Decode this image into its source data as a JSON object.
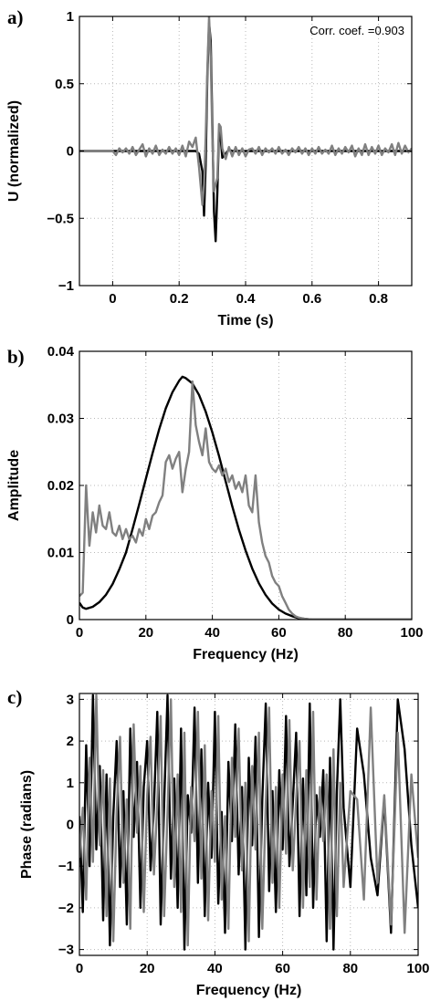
{
  "colors": {
    "black_trace": "#000000",
    "gray_trace": "#808080",
    "grid": "#b8b8b8"
  },
  "chart_data": [
    {
      "type": "line",
      "panel_label": "a)",
      "xlabel": "Time (s)",
      "ylabel": "U (normalized)",
      "annotation": "Corr. coef. =0.903",
      "xlim": [
        -0.1,
        0.9
      ],
      "ylim": [
        -1,
        1
      ],
      "xticks": [
        0,
        0.2,
        0.4,
        0.6,
        0.8
      ],
      "xtick_labels": [
        "0",
        "0.2",
        "0.4",
        "0.6",
        "0.8"
      ],
      "yticks": [
        -1,
        -0.5,
        0,
        0.5,
        1
      ],
      "ytick_labels": [
        "−1",
        "−0.5",
        "0",
        "0.5",
        "1"
      ],
      "grid": true,
      "series": [
        {
          "color": "black",
          "x": [
            -0.1,
            0.25,
            0.26,
            0.27,
            0.275,
            0.28,
            0.285,
            0.29,
            0.295,
            0.3,
            0.305,
            0.31,
            0.315,
            0.32,
            0.325,
            0.33,
            0.34,
            0.35,
            0.36,
            0.9
          ],
          "y": [
            0,
            0,
            -0.02,
            -0.15,
            -0.48,
            -0.1,
            0.55,
            0.95,
            0.82,
            0.2,
            -0.45,
            -0.67,
            -0.3,
            0.15,
            0.1,
            -0.05,
            -0.02,
            0.01,
            0,
            0
          ]
        },
        {
          "color": "gray",
          "x": [
            -0.1,
            0.0,
            0.01,
            0.02,
            0.03,
            0.04,
            0.05,
            0.06,
            0.07,
            0.08,
            0.09,
            0.1,
            0.11,
            0.12,
            0.13,
            0.14,
            0.15,
            0.16,
            0.17,
            0.18,
            0.19,
            0.2,
            0.21,
            0.22,
            0.23,
            0.24,
            0.25,
            0.26,
            0.27,
            0.275,
            0.28,
            0.285,
            0.29,
            0.295,
            0.3,
            0.305,
            0.31,
            0.315,
            0.32,
            0.325,
            0.33,
            0.34,
            0.35,
            0.36,
            0.37,
            0.38,
            0.39,
            0.4,
            0.41,
            0.42,
            0.43,
            0.44,
            0.45,
            0.46,
            0.47,
            0.48,
            0.49,
            0.5,
            0.51,
            0.52,
            0.53,
            0.54,
            0.55,
            0.56,
            0.57,
            0.58,
            0.59,
            0.6,
            0.61,
            0.62,
            0.63,
            0.64,
            0.65,
            0.66,
            0.67,
            0.68,
            0.69,
            0.7,
            0.71,
            0.72,
            0.73,
            0.74,
            0.75,
            0.76,
            0.77,
            0.78,
            0.79,
            0.8,
            0.81,
            0.82,
            0.83,
            0.84,
            0.85,
            0.86,
            0.87,
            0.88,
            0.89,
            0.9
          ],
          "y": [
            0,
            0,
            -0.03,
            0.02,
            -0.01,
            0.02,
            -0.02,
            0.03,
            -0.03,
            0.01,
            0.05,
            -0.04,
            0.02,
            -0.02,
            0.04,
            -0.03,
            0.01,
            -0.02,
            0.03,
            -0.02,
            0.02,
            -0.03,
            0.04,
            -0.04,
            0.07,
            0.03,
            0.1,
            -0.12,
            -0.4,
            -0.25,
            0.1,
            0.6,
            1.0,
            0.7,
            0.1,
            -0.3,
            -0.25,
            -0.2,
            0.2,
            0.18,
            0.02,
            -0.06,
            0.03,
            -0.04,
            0.03,
            -0.03,
            0.02,
            -0.04,
            0.01,
            0.02,
            -0.02,
            0.03,
            -0.03,
            0.02,
            -0.01,
            0.02,
            -0.02,
            0.03,
            -0.02,
            0.01,
            -0.03,
            0.02,
            -0.01,
            0.03,
            -0.02,
            0.02,
            -0.03,
            0.02,
            -0.02,
            0.03,
            -0.02,
            0.01,
            -0.02,
            0.04,
            -0.03,
            0.02,
            -0.02,
            0.03,
            -0.01,
            0.04,
            -0.04,
            0.02,
            -0.03,
            0.05,
            -0.03,
            0.03,
            -0.02,
            0.04,
            -0.03,
            0.02,
            -0.01,
            0.05,
            -0.03,
            0.06,
            -0.02,
            0.04,
            -0.01,
            0.02
          ]
        }
      ]
    },
    {
      "type": "line",
      "panel_label": "b)",
      "xlabel": "Frequency (Hz)",
      "ylabel": "Amplitude",
      "xlim": [
        0,
        100
      ],
      "ylim": [
        0,
        0.04
      ],
      "xticks": [
        0,
        20,
        40,
        60,
        80,
        100
      ],
      "xtick_labels": [
        "0",
        "20",
        "40",
        "60",
        "80",
        "100"
      ],
      "yticks": [
        0,
        0.01,
        0.02,
        0.03,
        0.04
      ],
      "ytick_labels": [
        "0",
        "0.01",
        "0.02",
        "0.03",
        "0.04"
      ],
      "grid": true,
      "series": [
        {
          "color": "black",
          "x": [
            0,
            1,
            2,
            4,
            6,
            8,
            10,
            12,
            14,
            16,
            18,
            20,
            22,
            24,
            26,
            28,
            30,
            31,
            32,
            34,
            36,
            38,
            40,
            42,
            44,
            46,
            48,
            50,
            52,
            54,
            56,
            58,
            60,
            62,
            64,
            66,
            68,
            70,
            80,
            90,
            100
          ],
          "y": [
            0.0025,
            0.0018,
            0.0016,
            0.0019,
            0.0026,
            0.0037,
            0.0053,
            0.0075,
            0.01,
            0.0135,
            0.0172,
            0.021,
            0.0248,
            0.0284,
            0.0315,
            0.0339,
            0.0356,
            0.0362,
            0.036,
            0.0352,
            0.0335,
            0.031,
            0.0279,
            0.0244,
            0.0206,
            0.0169,
            0.0134,
            0.0103,
            0.0076,
            0.0054,
            0.0037,
            0.0024,
            0.0015,
            0.0009,
            0.0005,
            0.0002,
            0.0001,
            0,
            0,
            0,
            0
          ]
        },
        {
          "color": "gray",
          "x": [
            0,
            1,
            2,
            3,
            4,
            5,
            6,
            7,
            8,
            9,
            10,
            11,
            12,
            13,
            14,
            15,
            16,
            17,
            18,
            19,
            20,
            21,
            22,
            23,
            24,
            25,
            26,
            27,
            28,
            29,
            30,
            31,
            32,
            33,
            34,
            35,
            36,
            37,
            38,
            39,
            40,
            41,
            42,
            43,
            44,
            45,
            46,
            47,
            48,
            49,
            50,
            51,
            52,
            53,
            54,
            55,
            56,
            57,
            58,
            59,
            60,
            61,
            62,
            63,
            64,
            65,
            66,
            67,
            68,
            70,
            75,
            80,
            90,
            100
          ],
          "y": [
            0.0035,
            0.004,
            0.02,
            0.011,
            0.016,
            0.013,
            0.017,
            0.014,
            0.0135,
            0.016,
            0.013,
            0.0125,
            0.014,
            0.012,
            0.0135,
            0.012,
            0.0125,
            0.0115,
            0.0135,
            0.0125,
            0.015,
            0.0135,
            0.0155,
            0.016,
            0.0175,
            0.0185,
            0.0235,
            0.0245,
            0.0225,
            0.024,
            0.025,
            0.019,
            0.0225,
            0.025,
            0.0355,
            0.029,
            0.0265,
            0.0245,
            0.0285,
            0.0235,
            0.0225,
            0.022,
            0.023,
            0.0215,
            0.0225,
            0.0205,
            0.0215,
            0.0195,
            0.0205,
            0.019,
            0.0215,
            0.017,
            0.016,
            0.0215,
            0.0145,
            0.0115,
            0.0095,
            0.0085,
            0.0065,
            0.0055,
            0.005,
            0.0035,
            0.0025,
            0.0015,
            0.0009,
            0.0005,
            0.0003,
            0.0002,
            0.0001,
            0,
            0,
            0,
            0,
            0
          ]
        }
      ]
    },
    {
      "type": "line",
      "panel_label": "c)",
      "xlabel": "Frequency (Hz)",
      "ylabel": "Phase (radians)",
      "xlim": [
        0,
        100
      ],
      "ylim": [
        -3.14,
        3.14
      ],
      "xticks": [
        0,
        20,
        40,
        60,
        80,
        100
      ],
      "xtick_labels": [
        "0",
        "20",
        "40",
        "60",
        "80",
        "100"
      ],
      "yticks": [
        -3,
        -2,
        -1,
        0,
        1,
        2,
        3
      ],
      "ytick_labels": [
        "−3",
        "−2",
        "−1",
        "0",
        "1",
        "2",
        "3"
      ],
      "grid": true,
      "series": [
        {
          "color": "black",
          "x": [
            0,
            1,
            2,
            3,
            4,
            5,
            6,
            7,
            8,
            9,
            10,
            11,
            12,
            13,
            14,
            15,
            16,
            17,
            18,
            19,
            20,
            21,
            22,
            23,
            24,
            25,
            26,
            27,
            28,
            29,
            30,
            31,
            32,
            33,
            34,
            35,
            36,
            37,
            38,
            39,
            40,
            41,
            42,
            43,
            44,
            45,
            46,
            47,
            48,
            49,
            50,
            51,
            52,
            53,
            54,
            55,
            56,
            57,
            58,
            59,
            60,
            61,
            62,
            63,
            64,
            65,
            66,
            67,
            68,
            69,
            70,
            71,
            72,
            73,
            74,
            75,
            76,
            77,
            78,
            80,
            82,
            84,
            86,
            88,
            90,
            92,
            94,
            96,
            98,
            100
          ],
          "y": [
            0.2,
            -2.1,
            1.9,
            -1.0,
            3.1,
            -0.6,
            1.4,
            -2.3,
            1.2,
            -2.9,
            0.2,
            2.0,
            -1.5,
            0.8,
            -2.4,
            2.3,
            -0.3,
            1.5,
            -2.0,
            0.9,
            2.0,
            -1.1,
            0.4,
            2.7,
            -2.4,
            0.5,
            3.1,
            -1.3,
            1.1,
            -2.0,
            2.3,
            -3.0,
            0.7,
            -0.2,
            2.8,
            -1.4,
            1.8,
            -2.2,
            1.0,
            -0.8,
            2.7,
            -1.9,
            0.3,
            -2.6,
            1.5,
            -0.4,
            2.4,
            -1.2,
            0.9,
            -3.0,
            1.6,
            -0.5,
            2.1,
            -2.7,
            0.6,
            2.9,
            -1.6,
            0.8,
            -2.1,
            1.3,
            -0.6,
            2.6,
            -1.0,
            0.5,
            2.2,
            -2.2,
            1.1,
            -1.7,
            2.9,
            -2.0,
            0.7,
            -0.3,
            1.3,
            -2.8,
            1.6,
            -3.0,
            0.8,
            3.0,
            0.4,
            -1.5,
            2.3,
            1.2,
            -0.8,
            -1.7,
            0.6,
            -2.6,
            3.0,
            1.8,
            -0.5,
            -2.0
          ]
        },
        {
          "color": "gray",
          "x": [
            0,
            1,
            2,
            3,
            4,
            5,
            6,
            7,
            8,
            9,
            10,
            11,
            12,
            13,
            14,
            15,
            16,
            17,
            18,
            19,
            20,
            21,
            22,
            23,
            24,
            25,
            26,
            27,
            28,
            29,
            30,
            31,
            32,
            33,
            34,
            35,
            36,
            37,
            38,
            39,
            40,
            41,
            42,
            43,
            44,
            45,
            46,
            47,
            48,
            49,
            50,
            51,
            52,
            53,
            54,
            55,
            56,
            57,
            58,
            59,
            60,
            61,
            62,
            63,
            64,
            65,
            66,
            67,
            68,
            69,
            70,
            71,
            72,
            73,
            74,
            75,
            76,
            77,
            78,
            80,
            82,
            84,
            86,
            88,
            90,
            92,
            94,
            96,
            98,
            100
          ],
          "y": [
            -0.8,
            0.4,
            -1.8,
            1.6,
            -0.9,
            3.1,
            -0.5,
            1.3,
            -2.2,
            1.1,
            -2.8,
            0.3,
            2.1,
            -1.4,
            0.6,
            -2.5,
            2.4,
            -0.2,
            1.4,
            -2.1,
            0.7,
            2.1,
            -1.2,
            0.5,
            2.6,
            -2.2,
            0.3,
            3.0,
            -1.5,
            1.2,
            -2.1,
            2.2,
            -2.9,
            0.9,
            -0.4,
            2.7,
            -1.3,
            1.9,
            -2.3,
            0.8,
            -0.9,
            2.6,
            -1.8,
            0.2,
            -2.5,
            1.6,
            -0.3,
            2.3,
            -1.1,
            1.0,
            -2.8,
            1.4,
            -0.6,
            2.2,
            -2.5,
            0.5,
            2.8,
            -1.4,
            0.9,
            -2.0,
            1.2,
            -0.7,
            2.5,
            -1.1,
            0.6,
            2.0,
            -2.0,
            1.3,
            -1.5,
            2.7,
            -1.8,
            0.9,
            -0.4,
            1.2,
            -2.5,
            1.8,
            -2.2,
            1.0,
            -1.5,
            0.8,
            0.6,
            -1.8,
            2.8,
            -1.4,
            0.7,
            -2.4,
            2.2,
            -2.6,
            1.2,
            -0.8
          ]
        }
      ]
    }
  ]
}
